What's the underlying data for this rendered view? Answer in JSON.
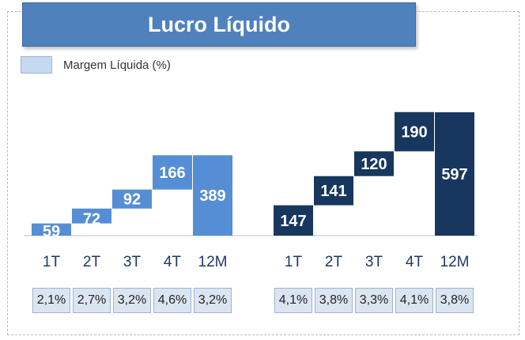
{
  "title": "Lucro Líquido",
  "legend": {
    "label": "Margem Líquida  (%)"
  },
  "colors": {
    "series_1": "#558ed5",
    "series_2": "#17375e",
    "baseline": "#bfbfbf"
  },
  "chart_data": [
    {
      "type": "bar",
      "subtype": "waterfall",
      "categories": [
        "1T",
        "2T",
        "3T",
        "4T",
        "12M"
      ],
      "values": [
        59,
        72,
        92,
        166,
        389
      ],
      "total_index": 4,
      "margins": [
        "2,1%",
        "2,7%",
        "3,2%",
        "4,6%",
        "3,2%"
      ]
    },
    {
      "type": "bar",
      "subtype": "waterfall",
      "categories": [
        "1T",
        "2T",
        "3T",
        "4T",
        "12M"
      ],
      "values": [
        147,
        141,
        120,
        190,
        597
      ],
      "total_index": 4,
      "margins": [
        "4,1%",
        "3,8%",
        "3,3%",
        "4,1%",
        "3,8%"
      ]
    }
  ]
}
